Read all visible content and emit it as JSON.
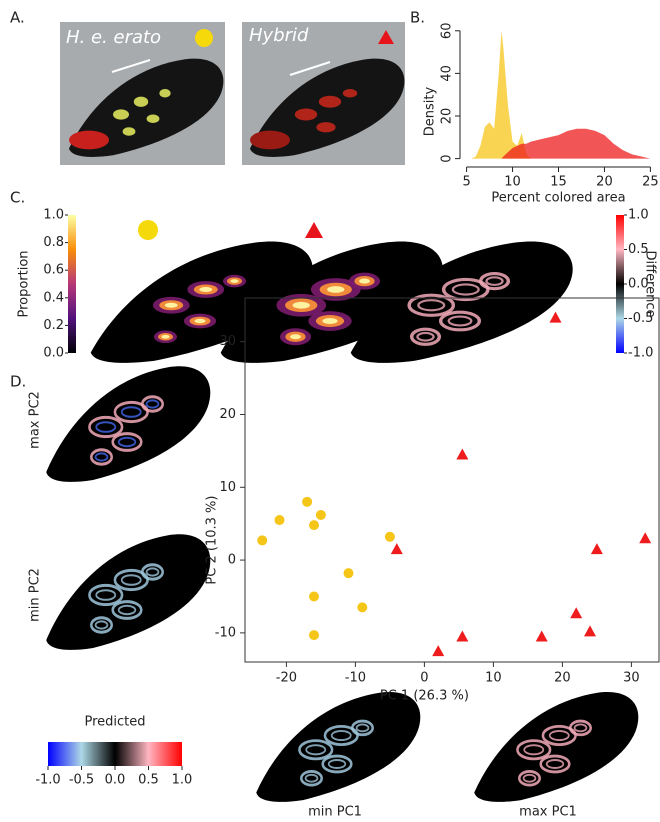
{
  "panel_labels": [
    "A.",
    "B.",
    "C.",
    "D."
  ],
  "wing_labels": {
    "max_pc2": "max PC2",
    "min_pc2": "min PC2",
    "min_pc1": "min PC1",
    "max_pc1": "max PC1"
  },
  "chart_data": [
    {
      "type": "area",
      "x_label": "Percent colored area",
      "y_label": "Density",
      "x": [
        5.5,
        6,
        6.5,
        7,
        7.5,
        8,
        8.5,
        8.8,
        9,
        9.5,
        10,
        10.5,
        11,
        11.5,
        12,
        13,
        14,
        15,
        16,
        17,
        18,
        19,
        20,
        21,
        22,
        23,
        24,
        25
      ],
      "series": [
        {
          "name": "H. e. erato",
          "color": "#f5c518",
          "values": [
            0,
            1,
            6,
            15,
            17,
            14,
            40,
            60,
            52,
            25,
            8,
            6,
            12,
            2,
            0,
            0,
            0,
            0,
            0,
            0,
            0,
            0,
            0,
            0,
            0,
            0,
            0,
            0
          ]
        },
        {
          "name": "Hybrid",
          "color": "#ee1c1c",
          "values": [
            0,
            0,
            0,
            0,
            0,
            0,
            0,
            0,
            1,
            3,
            5,
            6,
            7,
            7,
            8,
            9,
            10,
            11,
            13,
            14,
            14,
            13,
            11,
            7,
            4,
            2,
            1,
            0
          ]
        }
      ],
      "xlim": [
        4.5,
        25.5
      ],
      "xticks": [
        5,
        10,
        15,
        20,
        25
      ],
      "ylim": [
        -3,
        66
      ],
      "yticks": [
        0,
        20,
        40,
        60
      ]
    },
    {
      "type": "colorbar",
      "label": "Proportion",
      "colors": [
        "#000004",
        "#51127c",
        "#b73779",
        "#f98e09",
        "#fcffa4"
      ],
      "lim": [
        0,
        1
      ],
      "ticks": [
        {
          "value": 0,
          "label": "0.0"
        },
        {
          "value": 0.2,
          "label": "0.2"
        },
        {
          "value": 0.4,
          "label": "0.4"
        },
        {
          "value": 0.6,
          "label": "0.6"
        },
        {
          "value": 0.8,
          "label": "0.8"
        },
        {
          "value": 1,
          "label": "1.0"
        }
      ]
    },
    {
      "type": "colorbar",
      "label": "Difference",
      "colors": [
        "#0000ff",
        "#add8e6",
        "#000000",
        "#ffb6c1",
        "#ff0000"
      ],
      "lim": [
        -1,
        1
      ],
      "ticks": [
        {
          "value": -1,
          "label": "-1.0"
        },
        {
          "value": -0.5,
          "label": "-0.5"
        },
        {
          "value": 0,
          "label": "0.0"
        },
        {
          "value": 0.5,
          "label": "0.5"
        },
        {
          "value": 1,
          "label": "1.0"
        }
      ]
    },
    {
      "type": "scatter",
      "x_label": "PC 1 (26.3 %)",
      "y_label": "PC 2 (10.3 %)",
      "series": [
        {
          "color": "#f5c518",
          "marker": "circle",
          "x": [
            -23.5,
            -21,
            -17,
            -15,
            -16,
            -5,
            -11,
            -16,
            -9,
            -16
          ],
          "values": [
            2.7,
            5.5,
            8,
            6.2,
            4.8,
            3.2,
            -1.8,
            -5,
            -6.5,
            -10.3
          ]
        },
        {
          "color": "#ee1c1c",
          "marker": "triangle",
          "x": [
            19,
            5.5,
            -4,
            2,
            5.5,
            17,
            22,
            24,
            25,
            32
          ],
          "values": [
            33.3,
            14.5,
            1.5,
            -12.5,
            -10.5,
            -10.5,
            -7.3,
            -9.8,
            1.5,
            3
          ]
        }
      ],
      "xlim": [
        -26,
        34
      ],
      "xticks": [
        -20,
        -10,
        0,
        10,
        20,
        30
      ],
      "ylim": [
        -14,
        36
      ],
      "yticks": [
        -10,
        0,
        10,
        20,
        30
      ]
    },
    {
      "type": "colorbar",
      "label": "Predicted",
      "colors": [
        "#0000ff",
        "#add8e6",
        "#000000",
        "#ffb6c1",
        "#ff0000"
      ],
      "lim": [
        -1,
        1
      ],
      "ticks": [
        {
          "value": -1,
          "label": "-1.0"
        },
        {
          "value": -0.5,
          "label": "-0.5"
        },
        {
          "value": 0,
          "label": "0.0"
        },
        {
          "value": 0.5,
          "label": "0.5"
        },
        {
          "value": 1,
          "label": "1.0"
        }
      ]
    }
  ]
}
